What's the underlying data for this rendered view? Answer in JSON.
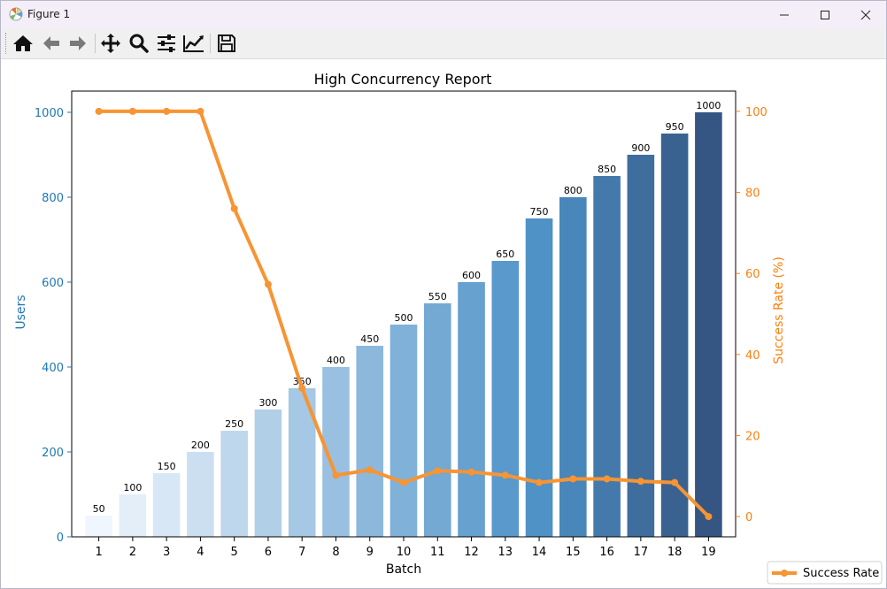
{
  "window": {
    "title": "Figure 1",
    "minimize_icon": "minimize-icon",
    "maximize_icon": "maximize-icon",
    "close_icon": "close-icon"
  },
  "toolbar": {
    "tools": [
      {
        "name": "home",
        "icon": "home-icon"
      },
      {
        "name": "back",
        "icon": "arrow-left-icon"
      },
      {
        "name": "forward",
        "icon": "arrow-right-icon"
      },
      {
        "name": "pan",
        "icon": "move-icon"
      },
      {
        "name": "zoom",
        "icon": "magnifier-icon"
      },
      {
        "name": "configure-subplots",
        "icon": "sliders-icon"
      },
      {
        "name": "edit-axes",
        "icon": "line-chart-icon"
      },
      {
        "name": "save",
        "icon": "floppy-disk-icon"
      }
    ]
  },
  "colors": {
    "left_axis": "#1f77b4",
    "right_axis": "#ff7f0e",
    "line": "#f79433",
    "bar_light": "#f0f6fd",
    "bar_dark": "#355683"
  },
  "chart_data": {
    "type": "bar",
    "title": "High Concurrency Report",
    "xlabel": "Batch",
    "ylabel": "Users",
    "y2label": "Success Rate (%)",
    "categories": [
      "1",
      "2",
      "3",
      "4",
      "5",
      "6",
      "7",
      "8",
      "9",
      "10",
      "11",
      "12",
      "13",
      "14",
      "15",
      "16",
      "17",
      "18",
      "19"
    ],
    "ylim": [
      0,
      1050
    ],
    "y2lim": [
      -5,
      105
    ],
    "yticks": [
      0,
      200,
      400,
      600,
      800,
      1000
    ],
    "y2ticks": [
      0,
      20,
      40,
      60,
      80,
      100
    ],
    "series": [
      {
        "type": "bar",
        "axis": "left",
        "values": [
          50,
          100,
          150,
          200,
          250,
          300,
          350,
          400,
          450,
          500,
          550,
          600,
          650,
          750,
          800,
          850,
          900,
          950,
          1000
        ],
        "data_labels": [
          "50",
          "100",
          "150",
          "200",
          "250",
          "300",
          "350",
          "400",
          "450",
          "500",
          "550",
          "600",
          "650",
          "750",
          "800",
          "850",
          "900",
          "950",
          "1000"
        ],
        "colormap": "Blues"
      },
      {
        "type": "line",
        "axis": "right",
        "name": "Success Rate",
        "values": [
          100,
          100,
          100,
          100,
          76,
          57.3,
          31.7,
          10.2,
          11.5,
          8.4,
          11.3,
          11.0,
          10.2,
          8.4,
          9.3,
          9.3,
          8.7,
          8.4,
          0
        ]
      }
    ],
    "legend": {
      "position": "bottom-right",
      "entries": [
        "Success Rate"
      ]
    },
    "grid": false
  }
}
